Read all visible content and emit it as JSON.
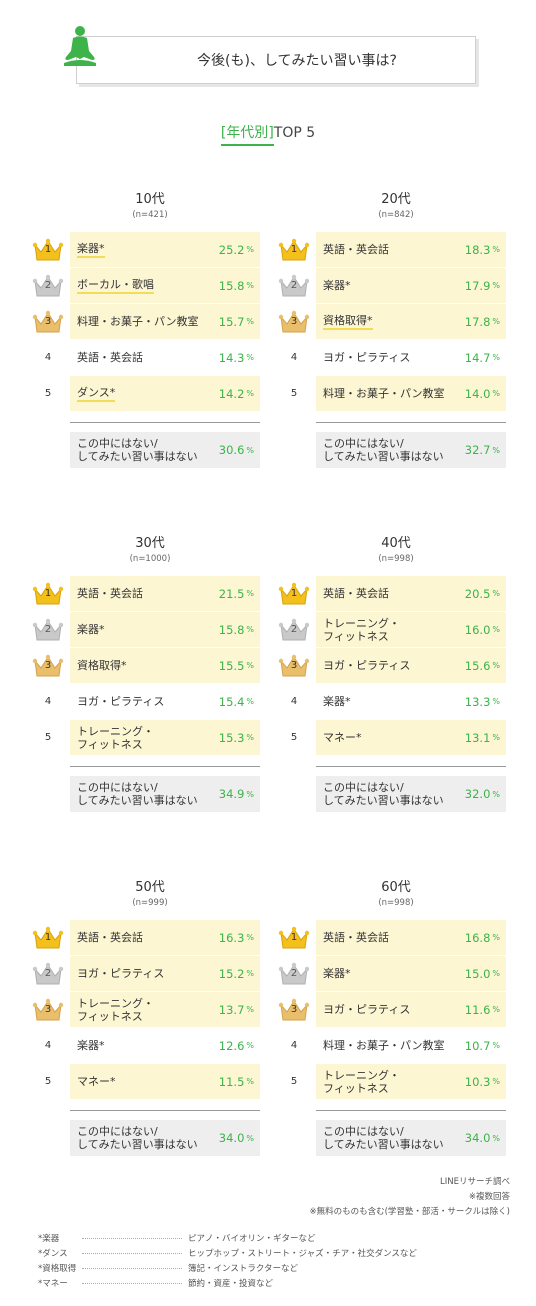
{
  "header": {
    "title": "今後(も)、してみたい習い事は?",
    "icon": "yoga-person-icon",
    "icon_color": "#3db34a"
  },
  "subtitle": {
    "open": "[",
    "category": "年代別",
    "close": "]",
    "top": "TOP 5"
  },
  "colors": {
    "accent": "#3db34a",
    "highlight": "#fdf6d3",
    "underline": "#f3dc5a",
    "gold": "#f4c01c",
    "silver": "#c9c9c9",
    "bronze": "#e9bf6c",
    "none_bg": "#eeeeee"
  },
  "pct_unit": "%",
  "chart_data": [
    {
      "type": "table",
      "age": "10代",
      "n": "(n=421)",
      "items": [
        {
          "rank": "1",
          "label": "楽器*",
          "value": "25.2",
          "underline": true
        },
        {
          "rank": "2",
          "label": "ボーカル・歌唱",
          "value": "15.8",
          "underline": true
        },
        {
          "rank": "3",
          "label": "料理・お菓子・パン教室",
          "value": "15.7",
          "underline": false
        },
        {
          "rank": "4",
          "label": "英語・英会話",
          "value": "14.3",
          "underline": false
        },
        {
          "rank": "5",
          "label": "ダンス*",
          "value": "14.2",
          "underline": true
        }
      ],
      "none": {
        "label1": "この中にはない/",
        "label2": "してみたい習い事はない",
        "value": "30.6"
      }
    },
    {
      "type": "table",
      "age": "20代",
      "n": "(n=842)",
      "items": [
        {
          "rank": "1",
          "label": "英語・英会話",
          "value": "18.3",
          "underline": false
        },
        {
          "rank": "2",
          "label": "楽器*",
          "value": "17.9",
          "underline": false
        },
        {
          "rank": "3",
          "label": "資格取得*",
          "value": "17.8",
          "underline": true
        },
        {
          "rank": "4",
          "label": "ヨガ・ピラティス",
          "value": "14.7",
          "underline": false
        },
        {
          "rank": "5",
          "label": "料理・お菓子・パン教室",
          "value": "14.0",
          "underline": false
        }
      ],
      "none": {
        "label1": "この中にはない/",
        "label2": "してみたい習い事はない",
        "value": "32.7"
      }
    },
    {
      "type": "table",
      "age": "30代",
      "n": "(n=1000)",
      "items": [
        {
          "rank": "1",
          "label": "英語・英会話",
          "value": "21.5",
          "underline": false
        },
        {
          "rank": "2",
          "label": "楽器*",
          "value": "15.8",
          "underline": false
        },
        {
          "rank": "3",
          "label": "資格取得*",
          "value": "15.5",
          "underline": false
        },
        {
          "rank": "4",
          "label": "ヨガ・ピラティス",
          "value": "15.4",
          "underline": false
        },
        {
          "rank": "5",
          "label": "トレーニング・\nフィットネス",
          "value": "15.3",
          "underline": false
        }
      ],
      "none": {
        "label1": "この中にはない/",
        "label2": "してみたい習い事はない",
        "value": "34.9"
      }
    },
    {
      "type": "table",
      "age": "40代",
      "n": "(n=998)",
      "items": [
        {
          "rank": "1",
          "label": "英語・英会話",
          "value": "20.5",
          "underline": false
        },
        {
          "rank": "2",
          "label": "トレーニング・\nフィットネス",
          "value": "16.0",
          "underline": false
        },
        {
          "rank": "3",
          "label": "ヨガ・ピラティス",
          "value": "15.6",
          "underline": false
        },
        {
          "rank": "4",
          "label": "楽器*",
          "value": "13.3",
          "underline": false
        },
        {
          "rank": "5",
          "label": "マネー*",
          "value": "13.1",
          "underline": false
        }
      ],
      "none": {
        "label1": "この中にはない/",
        "label2": "してみたい習い事はない",
        "value": "32.0"
      }
    },
    {
      "type": "table",
      "age": "50代",
      "n": "(n=999)",
      "items": [
        {
          "rank": "1",
          "label": "英語・英会話",
          "value": "16.3",
          "underline": false
        },
        {
          "rank": "2",
          "label": "ヨガ・ピラティス",
          "value": "15.2",
          "underline": false
        },
        {
          "rank": "3",
          "label": "トレーニング・\nフィットネス",
          "value": "13.7",
          "underline": false
        },
        {
          "rank": "4",
          "label": "楽器*",
          "value": "12.6",
          "underline": false
        },
        {
          "rank": "5",
          "label": "マネー*",
          "value": "11.5",
          "underline": false
        }
      ],
      "none": {
        "label1": "この中にはない/",
        "label2": "してみたい習い事はない",
        "value": "34.0"
      }
    },
    {
      "type": "table",
      "age": "60代",
      "n": "(n=998)",
      "items": [
        {
          "rank": "1",
          "label": "英語・英会話",
          "value": "16.8",
          "underline": false
        },
        {
          "rank": "2",
          "label": "楽器*",
          "value": "15.0",
          "underline": false
        },
        {
          "rank": "3",
          "label": "ヨガ・ピラティス",
          "value": "11.6",
          "underline": false
        },
        {
          "rank": "4",
          "label": "料理・お菓子・パン教室",
          "value": "10.7",
          "underline": false
        },
        {
          "rank": "5",
          "label": "トレーニング・\nフィットネス",
          "value": "10.3",
          "underline": false
        }
      ],
      "none": {
        "label1": "この中にはない/",
        "label2": "してみたい習い事はない",
        "value": "34.0"
      }
    }
  ],
  "footer": {
    "source": "LINEリサーチ調べ",
    "multi": "※複数回答",
    "note": "※無料のものも含む(学習塾・部活・サークルは除く)"
  },
  "notes": [
    {
      "key": "*楽器",
      "value": "ピアノ・バイオリン・ギターなど"
    },
    {
      "key": "*ダンス",
      "value": "ヒップホップ・ストリート・ジャズ・チア・社交ダンスなど"
    },
    {
      "key": "*資格取得",
      "value": "簿記・インストラクターなど"
    },
    {
      "key": "*マネー",
      "value": "節約・資産・投資など"
    }
  ]
}
